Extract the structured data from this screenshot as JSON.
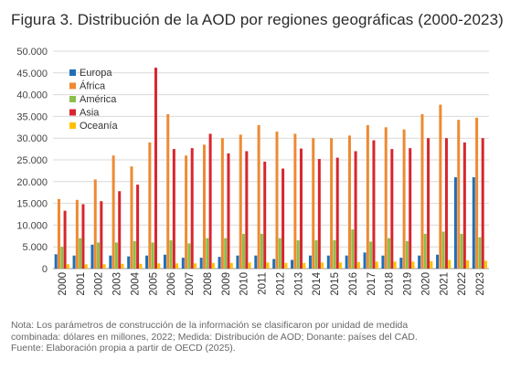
{
  "figure": {
    "title": "Figura 3. Distribución de la AOD por regiones geográficas (2000-2023)",
    "notes": [
      "Nota: Los parámetros de construcción de la información se clasificaron por unidad de medida",
      "combinada: dólares en millones, 2022; Medida: Distribución de AOD; Donante: países del CAD.",
      "Fuente: Elaboración propia a partir de OECD (2025)."
    ]
  },
  "chart_data": {
    "type": "bar",
    "title": "Figura 3. Distribución de la AOD por regiones geográficas (2000-2023)",
    "xlabel": "",
    "ylabel": "",
    "ylim": [
      0,
      50000
    ],
    "yticks": [
      "0",
      "5.000",
      "10.000",
      "15.000",
      "20.000",
      "25.000",
      "30.000",
      "35.000",
      "40.000",
      "45.000",
      "50.000"
    ],
    "grid": true,
    "legend_position": "top-left",
    "categories": [
      "2000",
      "2001",
      "2002",
      "2003",
      "2004",
      "2005",
      "2006",
      "2007",
      "2008",
      "2009",
      "2010",
      "2011",
      "2012",
      "2013",
      "2014",
      "2015",
      "2016",
      "2017",
      "2018",
      "2019",
      "2020",
      "2021",
      "2022",
      "2023"
    ],
    "series": [
      {
        "name": "Europa",
        "color": "#1f6fb5",
        "values": [
          3300,
          3000,
          5500,
          3000,
          2800,
          3000,
          3200,
          2500,
          2500,
          2700,
          3000,
          3000,
          2200,
          2000,
          3000,
          3000,
          3000,
          3700,
          3000,
          2500,
          3000,
          3200,
          21000,
          21000
        ]
      },
      {
        "name": "África",
        "color": "#ee8a33",
        "values": [
          16000,
          15800,
          20500,
          26000,
          23500,
          29000,
          35500,
          26000,
          28500,
          30000,
          30800,
          33000,
          31500,
          31000,
          30000,
          30000,
          30600,
          33000,
          32500,
          32000,
          35500,
          37700,
          34200,
          34700
        ]
      },
      {
        "name": "América",
        "color": "#8cbf4a",
        "values": [
          5000,
          7000,
          6000,
          6000,
          6300,
          6000,
          6500,
          5800,
          7000,
          7000,
          8000,
          8000,
          7000,
          6500,
          6500,
          6500,
          9000,
          6200,
          7000,
          6300,
          8000,
          8500,
          8000,
          7200
        ]
      },
      {
        "name": "Asia",
        "color": "#d7262d",
        "values": [
          13300,
          14800,
          15500,
          17800,
          19300,
          46200,
          27500,
          27700,
          31000,
          26500,
          27000,
          24600,
          23000,
          27600,
          25200,
          25500,
          27000,
          29500,
          27500,
          27700,
          30000,
          30000,
          29000,
          30000
        ]
      },
      {
        "name": "Oceanía",
        "color": "#ffc000",
        "values": [
          1000,
          1000,
          1000,
          1100,
          1100,
          1200,
          1200,
          1200,
          1300,
          1300,
          1400,
          1400,
          1300,
          1300,
          1400,
          1400,
          1500,
          1600,
          1600,
          1600,
          1700,
          2000,
          1900,
          1800
        ]
      }
    ]
  }
}
